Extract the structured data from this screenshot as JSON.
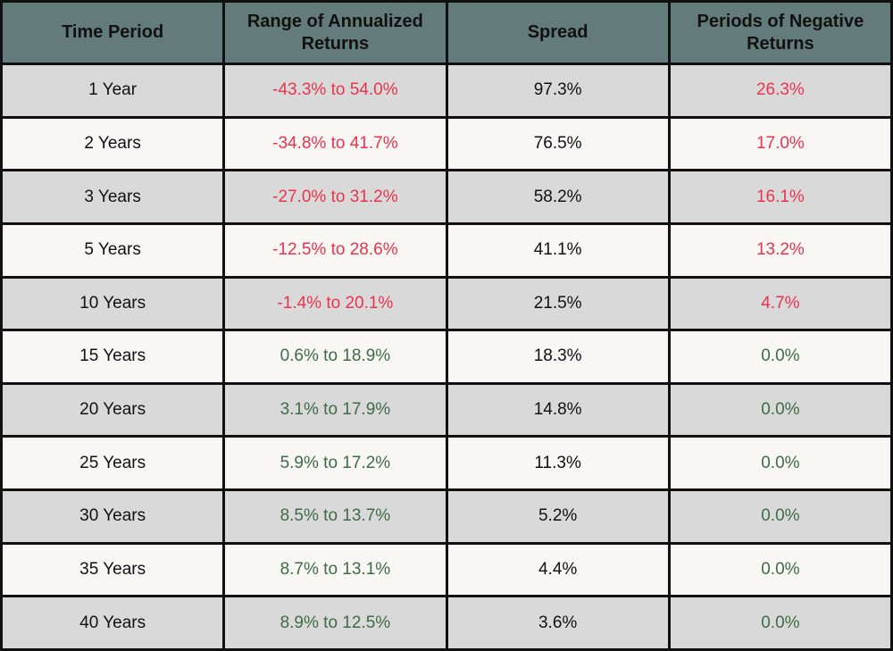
{
  "table": {
    "columns": [
      "Time Period",
      "Range of Annualized Returns",
      "Spread",
      "Periods of Negative Returns"
    ],
    "rows": [
      [
        "1 Year",
        "-43.3% to 54.0%",
        "97.3%",
        "26.3%"
      ],
      [
        "2 Years",
        "-34.8% to 41.7%",
        "76.5%",
        "17.0%"
      ],
      [
        "3 Years",
        "-27.0% to 31.2%",
        "58.2%",
        "16.1%"
      ],
      [
        "5 Years",
        "-12.5% to 28.6%",
        "41.1%",
        "13.2%"
      ],
      [
        "10 Years",
        "-1.4% to 20.1%",
        "21.5%",
        "4.7%"
      ],
      [
        "15 Years",
        "0.6% to 18.9%",
        "18.3%",
        "0.0%"
      ],
      [
        "20 Years",
        "3.1% to 17.9%",
        "14.8%",
        "0.0%"
      ],
      [
        "25 Years",
        "5.9% to 17.2%",
        "11.3%",
        "0.0%"
      ],
      [
        "30 Years",
        "8.5% to 13.7%",
        "5.2%",
        "0.0%"
      ],
      [
        "35 Years",
        "8.7% to 13.1%",
        "4.4%",
        "0.0%"
      ],
      [
        "40 Years",
        "8.9% to 12.5%",
        "3.6%",
        "0.0%"
      ]
    ],
    "row_colors": [
      "#e8344e",
      "#e8344e",
      "#e8344e",
      "#e8344e",
      "#e8344e",
      "#3f6b47",
      "#3f6b47",
      "#3f6b47",
      "#3f6b47",
      "#3f6b47",
      "#3f6b47"
    ]
  }
}
